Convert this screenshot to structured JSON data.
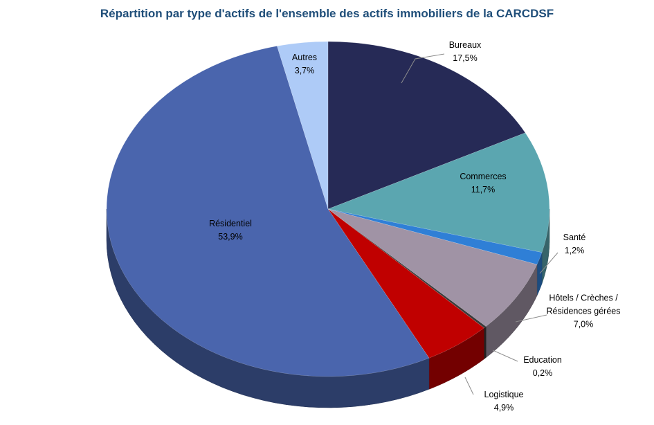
{
  "chart_data": {
    "type": "pie",
    "title": "Répartition par type d'actifs de l'ensemble des actifs immobiliers de la CARCDSF",
    "categories": [
      "Bureaux",
      "Commerces",
      "Santé",
      "Hôtels / Crèches / Résidences gérées",
      "Education",
      "Logistique",
      "Résidentiel",
      "Autres"
    ],
    "values": [
      17.5,
      11.7,
      1.2,
      7.0,
      0.2,
      4.9,
      53.9,
      3.7
    ],
    "value_labels": [
      "17,5%",
      "11,7%",
      "1,2%",
      "7,0%",
      "0,2%",
      "4,9%",
      "53,9%",
      "3,7%"
    ],
    "colors": [
      "#262a56",
      "#5ba6b0",
      "#2f7fd6",
      "#a093a5",
      "#3a3a3a",
      "#c00000",
      "#4a65ad",
      "#aecbf7"
    ]
  }
}
